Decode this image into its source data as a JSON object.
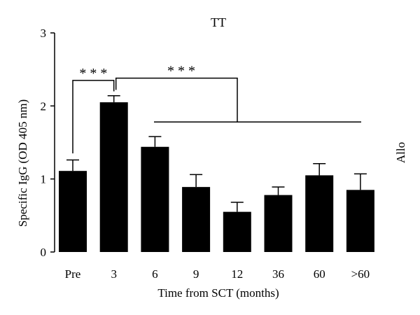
{
  "chart_data": {
    "type": "bar",
    "title": "TT",
    "side_label": "Allo",
    "xlabel": "Time from SCT (months)",
    "ylabel": "Specific IgG (OD 405 nm)",
    "ylim": [
      0,
      3
    ],
    "yticks": [
      "0",
      "1",
      "2",
      "3"
    ],
    "categories": [
      "Pre",
      "3",
      "6",
      "9",
      "12",
      "36",
      "60",
      ">60"
    ],
    "values": [
      1.11,
      2.05,
      1.44,
      0.89,
      0.55,
      0.78,
      1.05,
      0.85
    ],
    "errors": [
      0.15,
      0.09,
      0.14,
      0.17,
      0.13,
      0.11,
      0.16,
      0.22
    ],
    "bar_color": "#000000",
    "significance": [
      {
        "label": "* * *",
        "between": "Pre vs 3"
      },
      {
        "label": "* * *",
        "between": "3 vs 6–>60"
      }
    ]
  }
}
